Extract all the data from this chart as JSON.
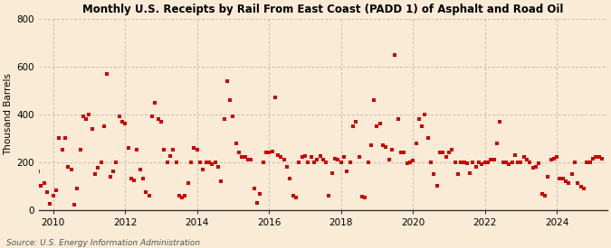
{
  "title": "Monthly U.S. Receipts by Rail From East Coast (PADD 1) of Asphalt and Road Oil",
  "ylabel": "Thousand Barrels",
  "source": "Source: U.S. Energy Information Administration",
  "background_color": "#faebd7",
  "plot_bg_color": "#faebd7",
  "marker_color": "#cc0000",
  "marker_size": 12,
  "xlim": [
    2009.6,
    2025.4
  ],
  "ylim": [
    0,
    800
  ],
  "yticks": [
    0,
    200,
    400,
    600,
    800
  ],
  "xticks": [
    2010,
    2012,
    2014,
    2016,
    2018,
    2020,
    2022,
    2024
  ],
  "grid_color": "#aaaaaa",
  "values": [
    170,
    160,
    100,
    110,
    75,
    25,
    60,
    80,
    300,
    250,
    300,
    180,
    170,
    20,
    90,
    250,
    390,
    380,
    400,
    340,
    150,
    175,
    200,
    350,
    570,
    140,
    160,
    200,
    390,
    370,
    360,
    260,
    130,
    125,
    250,
    170,
    130,
    75,
    60,
    390,
    450,
    380,
    370,
    250,
    200,
    225,
    250,
    200,
    60,
    50,
    60,
    110,
    200,
    260,
    250,
    200,
    170,
    200,
    200,
    190,
    200,
    180,
    120,
    380,
    540,
    460,
    390,
    280,
    240,
    220,
    220,
    210,
    210,
    90,
    30,
    65,
    200,
    240,
    240,
    245,
    470,
    230,
    220,
    210,
    180,
    130,
    60,
    50,
    200,
    220,
    225,
    200,
    220,
    200,
    210,
    225,
    210,
    200,
    60,
    155,
    215,
    210,
    200,
    220,
    160,
    200,
    350,
    370,
    220,
    55,
    50,
    200,
    270,
    460,
    350,
    360,
    270,
    265,
    210,
    250,
    650,
    380,
    240,
    240,
    195,
    200,
    205,
    280,
    380,
    350,
    400,
    300,
    200,
    150,
    100,
    240,
    240,
    220,
    240,
    250,
    200,
    150,
    200,
    200,
    195,
    155,
    200,
    180,
    200,
    190,
    200,
    200,
    210,
    210,
    280,
    370,
    200,
    200,
    190,
    200,
    230,
    200,
    200,
    220,
    210,
    200,
    175,
    180,
    195,
    65,
    60,
    140,
    210,
    215,
    220,
    130,
    130,
    120,
    110,
    150,
    200,
    110,
    95,
    90,
    200,
    200,
    215,
    220,
    220,
    215
  ],
  "start_year": 2009,
  "start_month": 7
}
